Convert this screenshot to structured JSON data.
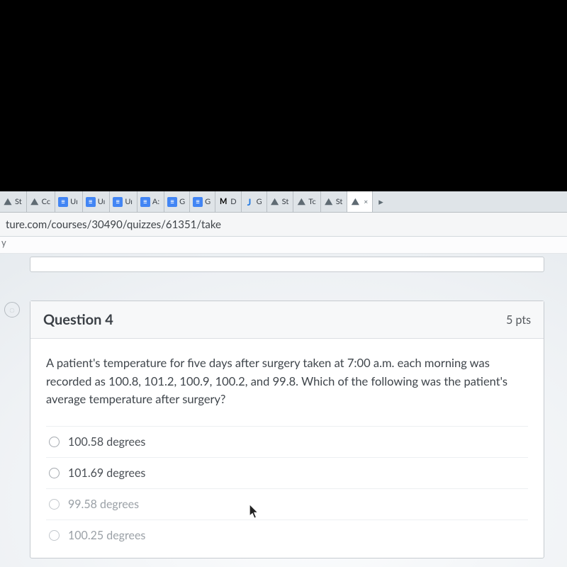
{
  "tabs": [
    {
      "favicon_type": "dino",
      "glyph": "⛰",
      "label": "St"
    },
    {
      "favicon_type": "dino",
      "glyph": "⛰",
      "label": "Cc"
    },
    {
      "favicon_type": "docs",
      "glyph": "≡",
      "label": "Uı"
    },
    {
      "favicon_type": "docs",
      "glyph": "≡",
      "label": "Uı"
    },
    {
      "favicon_type": "docs",
      "glyph": "≡",
      "label": "Uı"
    },
    {
      "favicon_type": "docs",
      "glyph": "≡",
      "label": "A:"
    },
    {
      "favicon_type": "docs",
      "glyph": "≡",
      "label": "G"
    },
    {
      "favicon_type": "docs",
      "glyph": "≡",
      "label": "G"
    },
    {
      "favicon_type": "gmail",
      "glyph": "M",
      "label": "D"
    },
    {
      "favicon_type": "j",
      "glyph": "J",
      "label": "G"
    },
    {
      "favicon_type": "dino",
      "glyph": "⛰",
      "label": "St"
    },
    {
      "favicon_type": "dino",
      "glyph": "⛰",
      "label": "Tc"
    },
    {
      "favicon_type": "dino",
      "glyph": "⛰",
      "label": "St"
    }
  ],
  "active_tab": {
    "favicon_type": "dino",
    "glyph": "⛰",
    "close": "×"
  },
  "url_fragment": "ture.com/courses/30490/quizzes/61351/take",
  "toolbar_hint": "y",
  "question": {
    "title": "Question 4",
    "points": "5 pts",
    "text": "A patient's temperature for five days after surgery taken at 7:00 a.m. each morning was recorded as 100.8, 101.2, 100.9, 100.2, and 99.8. Which of the following was the patient's average temperature after surgery?",
    "answers": [
      "100.58 degrees",
      "101.69 degrees",
      "99.58 degrees",
      "100.25 degrees"
    ]
  },
  "nav_icon": "◌"
}
